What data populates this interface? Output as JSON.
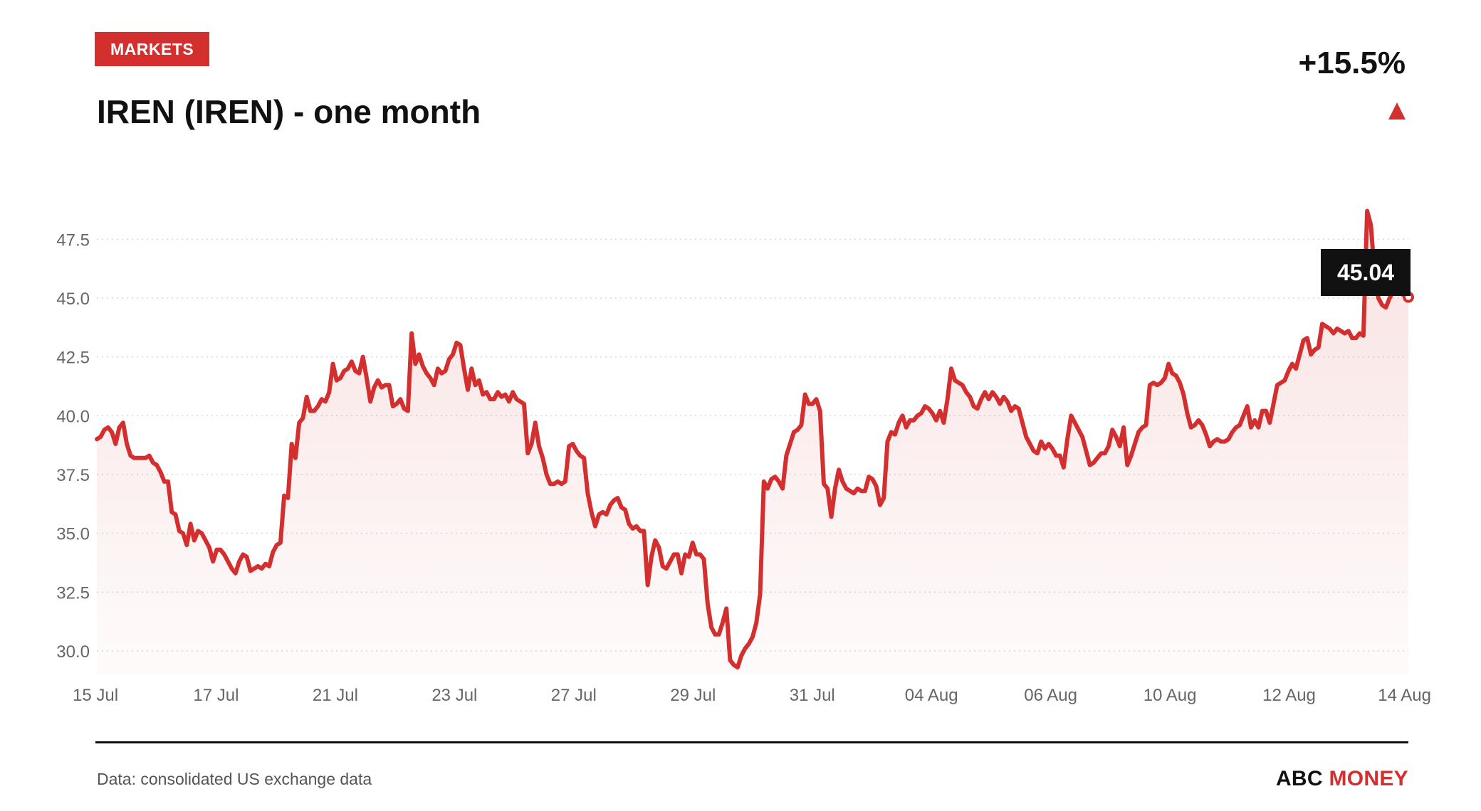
{
  "header": {
    "badge": "MARKETS",
    "title": "IREN (IREN) - one month",
    "change": "+15.5%",
    "direction_icon": "triangle-up-icon"
  },
  "footer": {
    "source": "Data: consolidated US exchange data",
    "brand_main": "ABC",
    "brand_accent": "MONEY"
  },
  "colors": {
    "accent": "#d32f2f",
    "text": "#111111",
    "axis_text": "#666666",
    "grid": "#d9d9d9"
  },
  "chart_data": {
    "type": "area",
    "title": "IREN (IREN) - one month",
    "xlabel": "",
    "ylabel": "",
    "ylim": [
      29.0,
      48.9
    ],
    "yticks": [
      30.0,
      32.5,
      35.0,
      37.5,
      40.0,
      42.5,
      45.0,
      47.5
    ],
    "xticks": [
      "15 Jul",
      "17 Jul",
      "21 Jul",
      "23 Jul",
      "27 Jul",
      "29 Jul",
      "31 Jul",
      "04 Aug",
      "06 Aug",
      "10 Aug",
      "12 Aug",
      "14 Aug"
    ],
    "grid": true,
    "last_value_label": "45.04",
    "series": [
      {
        "values": [
          39.0,
          39.1,
          39.4,
          39.5,
          39.3,
          38.8,
          39.5,
          39.7,
          38.8,
          38.3,
          38.2,
          38.2,
          38.2,
          38.2,
          38.3,
          38.0,
          37.9,
          37.6,
          37.2,
          37.2,
          35.9,
          35.8,
          35.1,
          35.0,
          34.5,
          35.4,
          34.7,
          35.1,
          35.0,
          34.7,
          34.4,
          33.8,
          34.3,
          34.3,
          34.1,
          33.8,
          33.5,
          33.3,
          33.8,
          34.1,
          34.0,
          33.4,
          33.5,
          33.6,
          33.5,
          33.7,
          33.6,
          34.2,
          34.5,
          34.6,
          36.6,
          36.5,
          38.8,
          38.2,
          39.7,
          39.9,
          40.8,
          40.2,
          40.2,
          40.4,
          40.7,
          40.6,
          41.0,
          42.2,
          41.5,
          41.6,
          41.9,
          42.0,
          42.3,
          41.9,
          41.8,
          42.5,
          41.6,
          40.6,
          41.2,
          41.5,
          41.2,
          41.3,
          41.3,
          40.4,
          40.5,
          40.7,
          40.3,
          40.2,
          43.5,
          42.2,
          42.6,
          42.1,
          41.8,
          41.6,
          41.3,
          42.0,
          41.8,
          41.9,
          42.4,
          42.6,
          43.1,
          43.0,
          42.0,
          41.1,
          42.0,
          41.3,
          41.5,
          40.9,
          41.0,
          40.7,
          40.7,
          41.0,
          40.8,
          40.9,
          40.6,
          41.0,
          40.7,
          40.6,
          40.5,
          38.4,
          38.8,
          39.7,
          38.7,
          38.2,
          37.5,
          37.1,
          37.1,
          37.2,
          37.1,
          37.2,
          38.7,
          38.8,
          38.5,
          38.3,
          38.2,
          36.7,
          35.9,
          35.3,
          35.8,
          35.9,
          35.8,
          36.2,
          36.4,
          36.5,
          36.1,
          36.0,
          35.4,
          35.2,
          35.3,
          35.1,
          35.1,
          32.8,
          34.0,
          34.7,
          34.4,
          33.6,
          33.5,
          33.8,
          34.1,
          34.1,
          33.3,
          34.1,
          34.0,
          34.6,
          34.1,
          34.1,
          33.9,
          32.0,
          31.0,
          30.7,
          30.7,
          31.2,
          31.8,
          29.6,
          29.4,
          29.3,
          29.8,
          30.1,
          30.3,
          30.6,
          31.2,
          32.4,
          37.2,
          36.9,
          37.3,
          37.4,
          37.2,
          36.9,
          38.3,
          38.8,
          39.3,
          39.4,
          39.6,
          40.9,
          40.5,
          40.5,
          40.7,
          40.2,
          37.1,
          36.9,
          35.7,
          36.9,
          37.7,
          37.2,
          36.9,
          36.8,
          36.7,
          36.9,
          36.8,
          36.8,
          37.4,
          37.3,
          37.0,
          36.2,
          36.5,
          38.9,
          39.3,
          39.2,
          39.7,
          40.0,
          39.5,
          39.8,
          39.8,
          40.0,
          40.1,
          40.4,
          40.3,
          40.1,
          39.8,
          40.2,
          39.7,
          40.7,
          42.0,
          41.5,
          41.4,
          41.3,
          41.0,
          40.8,
          40.4,
          40.3,
          40.7,
          41.0,
          40.7,
          41.0,
          40.8,
          40.5,
          40.8,
          40.6,
          40.2,
          40.4,
          40.3,
          39.7,
          39.1,
          38.8,
          38.5,
          38.4,
          38.9,
          38.6,
          38.8,
          38.6,
          38.3,
          38.3,
          37.8,
          39.0,
          40.0,
          39.7,
          39.4,
          39.1,
          38.5,
          37.9,
          38.0,
          38.2,
          38.4,
          38.4,
          38.7,
          39.4,
          39.1,
          38.7,
          39.5,
          37.9,
          38.3,
          38.8,
          39.3,
          39.5,
          39.6,
          41.3,
          41.4,
          41.3,
          41.4,
          41.6,
          42.2,
          41.8,
          41.7,
          41.4,
          40.9,
          40.1,
          39.5,
          39.6,
          39.8,
          39.6,
          39.2,
          38.7,
          38.9,
          39.0,
          38.9,
          38.9,
          39.0,
          39.3,
          39.5,
          39.6,
          40.0,
          40.4,
          39.5,
          39.8,
          39.5,
          40.2,
          40.2,
          39.7,
          40.5,
          41.3,
          41.4,
          41.5,
          41.9,
          42.2,
          42.0,
          42.6,
          43.2,
          43.3,
          42.6,
          42.8,
          42.9,
          43.9,
          43.8,
          43.7,
          43.5,
          43.7,
          43.6,
          43.5,
          43.6,
          43.3,
          43.3,
          43.5,
          43.4,
          48.7,
          48.1,
          46.0,
          45.0,
          44.7,
          44.6,
          45.0,
          45.3,
          45.4,
          45.2,
          45.1,
          45.04
        ]
      }
    ]
  }
}
